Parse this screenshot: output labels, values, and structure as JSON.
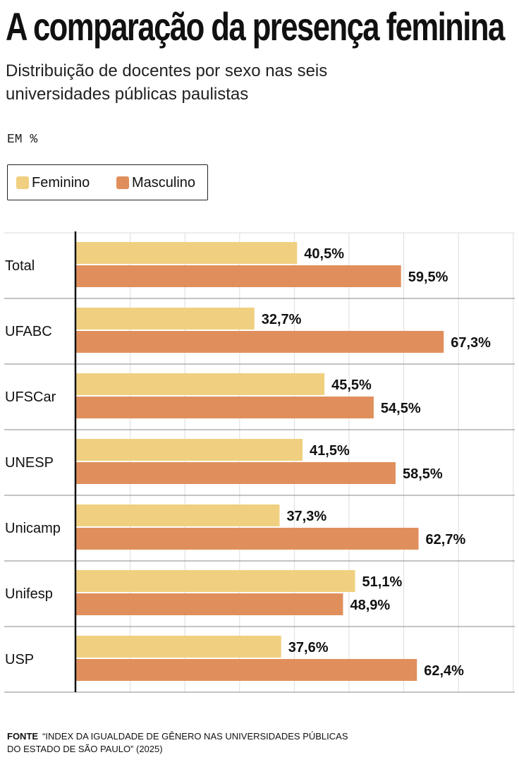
{
  "header": {
    "title": "A comparação da presença feminina",
    "subtitle": "Distribuição de docentes por sexo nas seis universidades públicas paulistas",
    "unit": "EM %"
  },
  "legend": {
    "items": [
      {
        "label": "Feminino",
        "color": "#F0D080"
      },
      {
        "label": "Masculino",
        "color": "#E08F5C"
      }
    ]
  },
  "footer": {
    "label": "FONTE",
    "line1": "“INDEX DA IGUALDADE DE GÊNERO NAS UNIVERSIDADES PÚBLICAS",
    "line2": "DO ESTADO DE SÃO PAULO” (2025)"
  },
  "chart_data": {
    "type": "bar",
    "orientation": "horizontal",
    "title": "A comparação da presença feminina",
    "subtitle": "Distribuição de docentes por sexo nas seis universidades públicas paulistas",
    "xlabel": "",
    "ylabel": "",
    "unit": "%",
    "xlim": [
      0,
      80
    ],
    "grid": true,
    "legend_position": "top-left",
    "categories": [
      "Total",
      "UFABC",
      "UFSCar",
      "UNESP",
      "Unicamp",
      "Unifesp",
      "USP"
    ],
    "series": [
      {
        "name": "Feminino",
        "color": "#F0D080",
        "values": [
          40.5,
          32.7,
          45.5,
          41.5,
          37.3,
          51.1,
          37.6
        ],
        "labels": [
          "40,5%",
          "32,7%",
          "45,5%",
          "41,5%",
          "37,3%",
          "51,1%",
          "37,6%"
        ]
      },
      {
        "name": "Masculino",
        "color": "#E08F5C",
        "values": [
          59.5,
          67.3,
          54.5,
          58.5,
          62.7,
          48.9,
          62.4
        ],
        "labels": [
          "59,5%",
          "67,3%",
          "54,5%",
          "58,5%",
          "62,7%",
          "48,9%",
          "62,4%"
        ]
      }
    ]
  }
}
